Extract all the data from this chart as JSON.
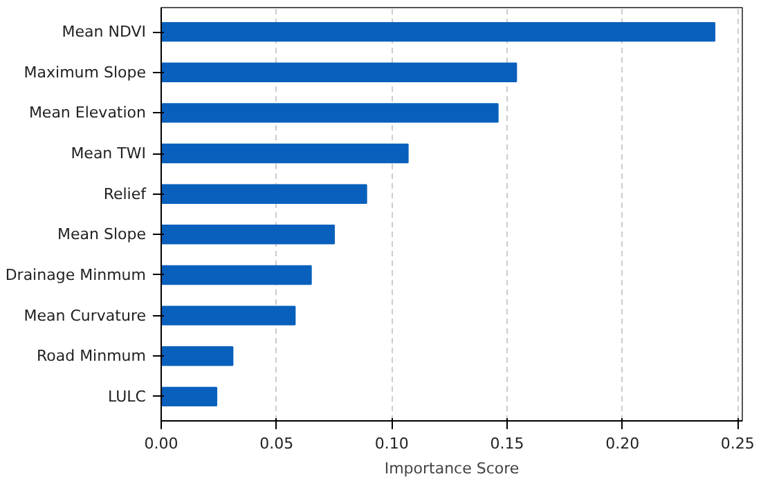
{
  "chart_data": {
    "type": "bar",
    "orientation": "horizontal",
    "xlabel": "Importance Score",
    "categories": [
      "Mean NDVI",
      "Maximum Slope",
      "Mean Elevation",
      "Mean TWI",
      "Relief",
      "Mean Slope",
      "Drainage Minmum",
      "Mean Curvature",
      "Road Minmum",
      "LULC"
    ],
    "values": [
      0.24,
      0.154,
      0.146,
      0.107,
      0.089,
      0.075,
      0.065,
      0.058,
      0.031,
      0.024
    ],
    "color": "#0860bc",
    "xlim": [
      0,
      0.252
    ],
    "xticks": [
      {
        "value": 0,
        "label": "0.00"
      },
      {
        "value": 0.05,
        "label": "0.05"
      },
      {
        "value": 0.1,
        "label": "0.10"
      },
      {
        "value": 0.15,
        "label": "0.15"
      },
      {
        "value": 0.2,
        "label": "0.20"
      },
      {
        "value": 0.25,
        "label": "0.25"
      }
    ],
    "grid": "x"
  }
}
